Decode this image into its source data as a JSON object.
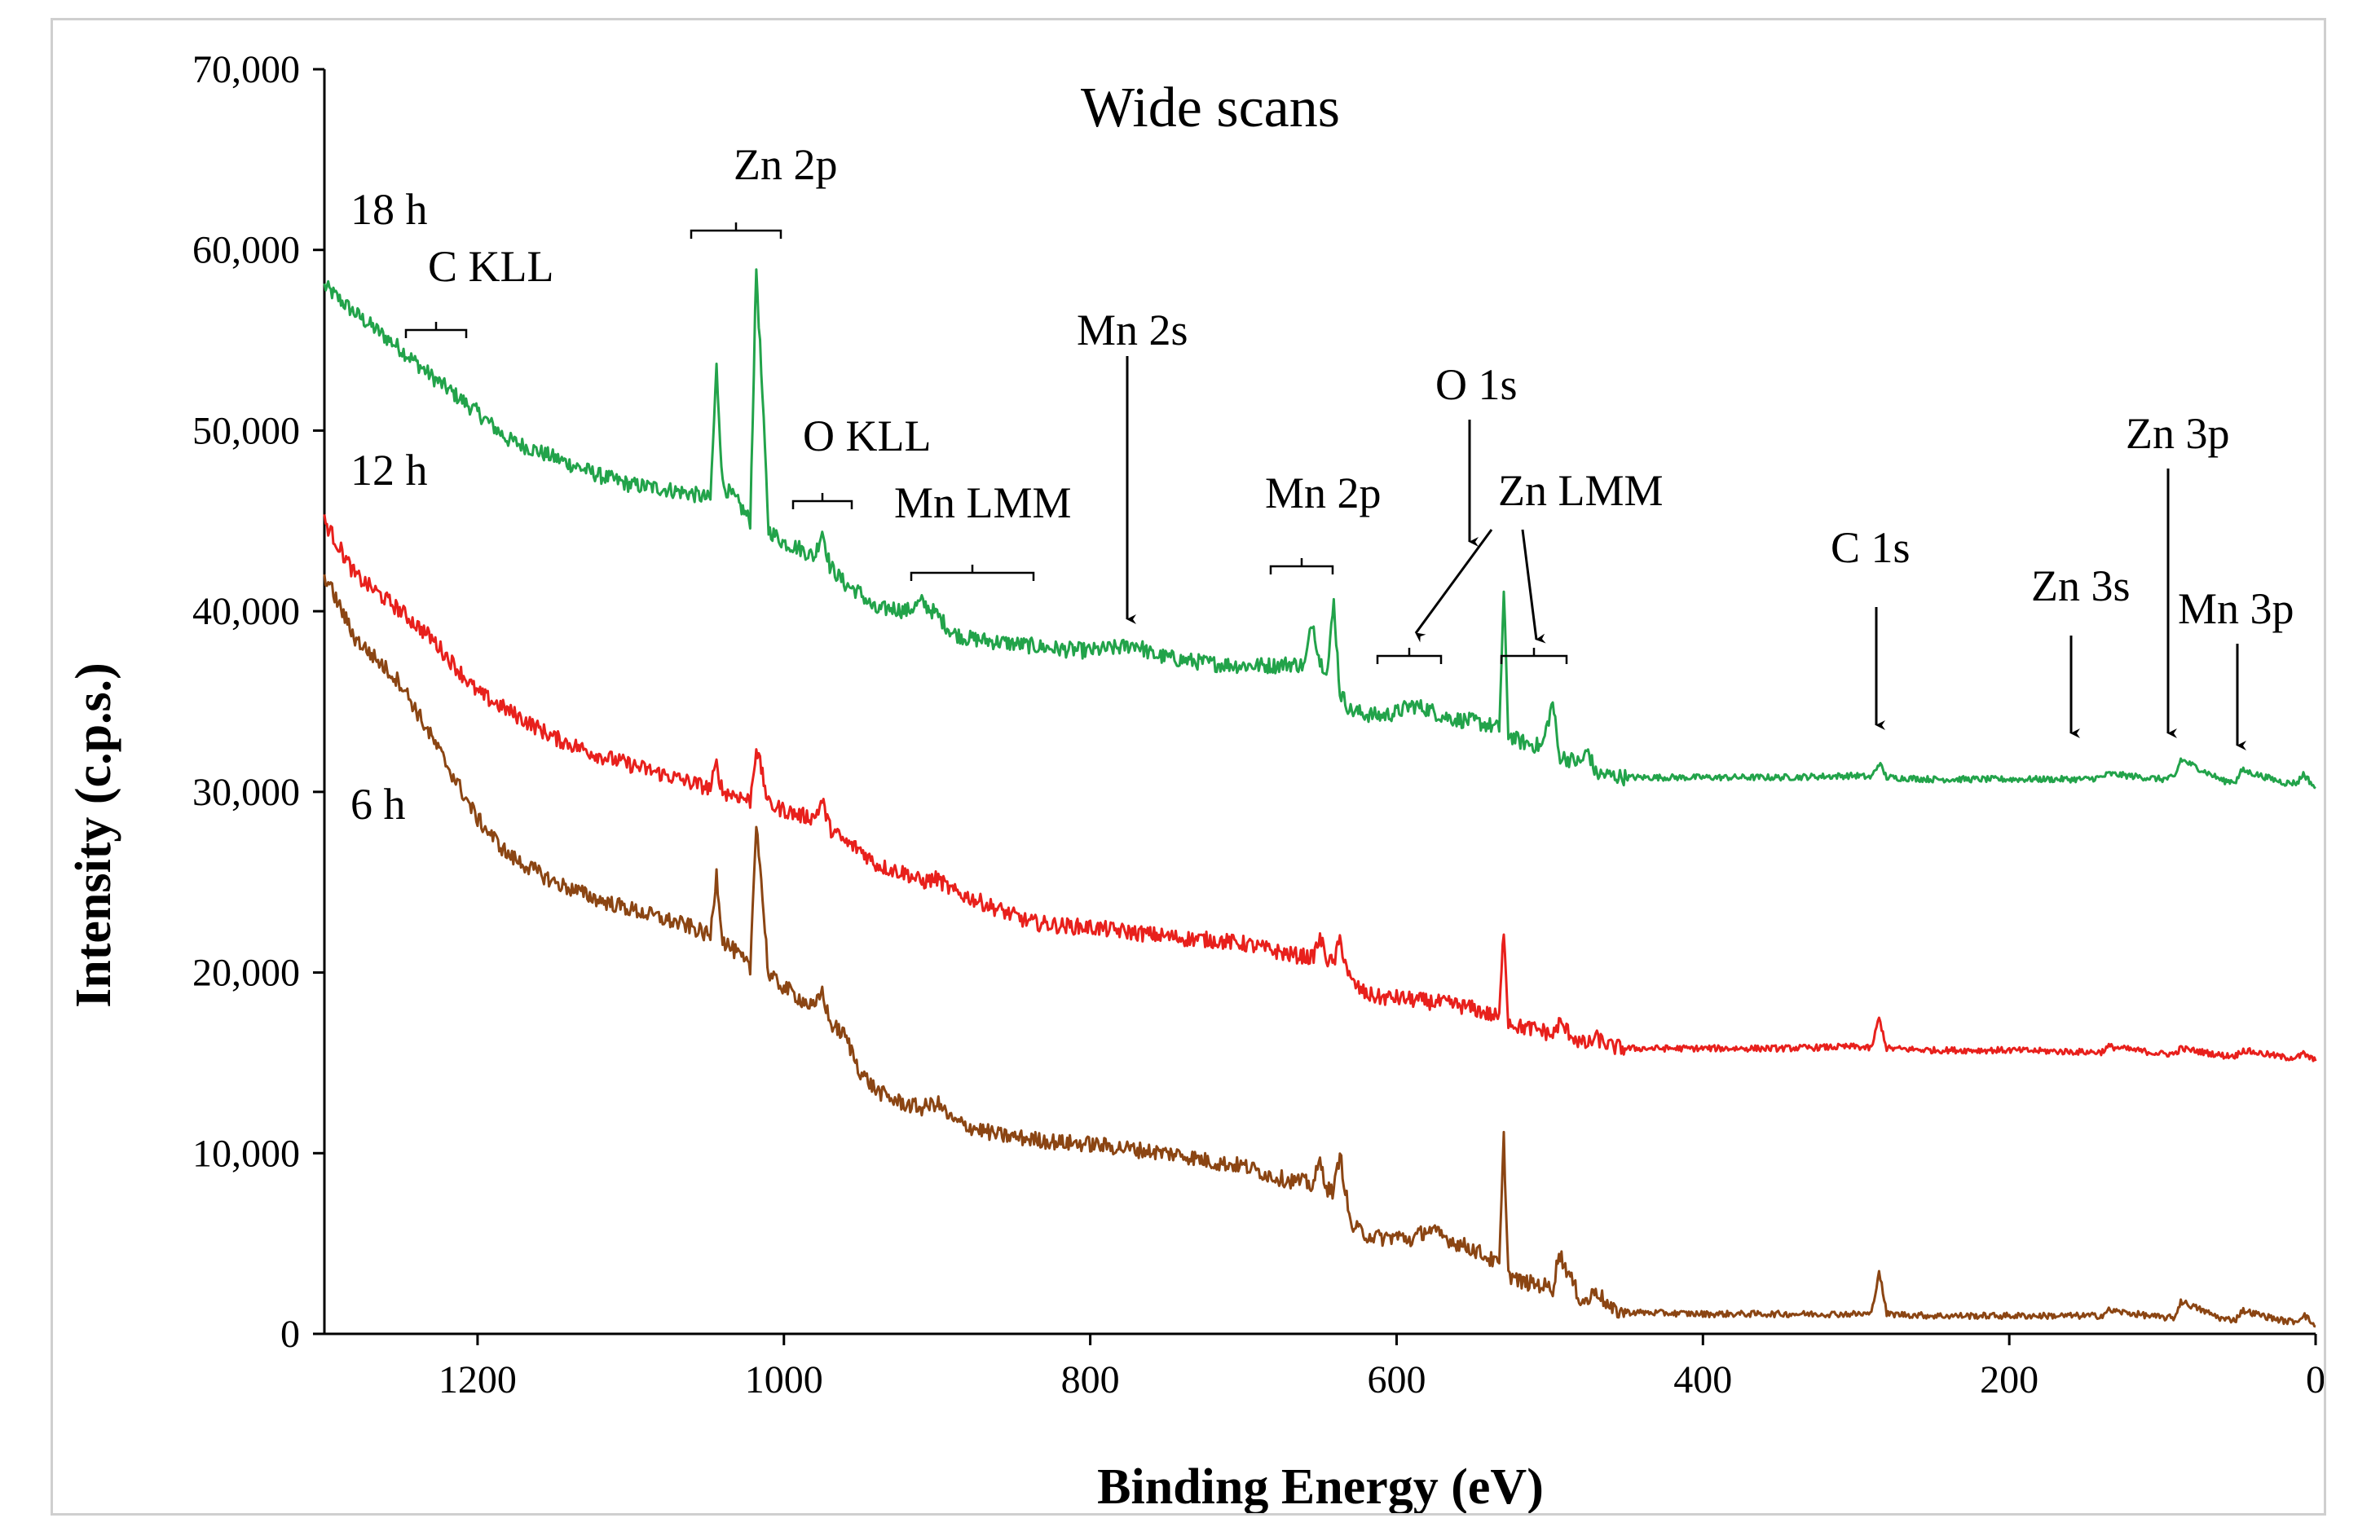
{
  "chart_data": {
    "type": "line",
    "title": "Wide scans",
    "xlabel": "Binding Energy (eV)",
    "ylabel": "Intensity (c.p.s.)",
    "xlim": [
      1300,
      0
    ],
    "ylim": [
      0,
      70000
    ],
    "x_ticks": [
      1200,
      1000,
      800,
      600,
      400,
      200,
      0
    ],
    "x_tick_labels": [
      "1200",
      "1000",
      "800",
      "600",
      "400",
      "200",
      "0"
    ],
    "y_ticks": [
      0,
      10000,
      20000,
      30000,
      40000,
      50000,
      60000,
      70000
    ],
    "y_tick_labels": [
      "0",
      "10,000",
      "20,000",
      "30,000",
      "40,000",
      "50,000",
      "60,000",
      "70,000"
    ],
    "series": [
      {
        "name": "18 h",
        "color": "#22a34a",
        "x": [
          1300,
          1280,
          1250,
          1230,
          1200,
          1180,
          1150,
          1120,
          1100,
          1080,
          1060,
          1048,
          1044,
          1040,
          1030,
          1022,
          1018,
          1010,
          1000,
          990,
          980,
          975,
          970,
          960,
          950,
          940,
          930,
          920,
          910,
          900,
          890,
          880,
          860,
          840,
          820,
          800,
          780,
          770,
          760,
          740,
          720,
          700,
          680,
          670,
          660,
          655,
          650,
          645,
          641,
          637,
          630,
          620,
          610,
          600,
          590,
          580,
          570,
          560,
          550,
          540,
          533,
          530,
          527,
          520,
          505,
          498,
          494,
          480,
          475,
          470,
          460,
          450,
          400,
          350,
          300,
          290,
          285,
          280,
          250,
          200,
          150,
          140,
          135,
          100,
          92,
          88,
          60,
          52,
          48,
          20,
          12,
          8,
          0
        ],
        "y": [
          58000,
          56500,
          54500,
          53000,
          51000,
          49500,
          48500,
          47500,
          47000,
          46800,
          46500,
          46200,
          53500,
          47000,
          46000,
          45000,
          59000,
          44500,
          43800,
          43500,
          43000,
          44500,
          42500,
          41500,
          41000,
          40000,
          40200,
          40000,
          40500,
          39800,
          38800,
          38500,
          38300,
          38100,
          37900,
          37800,
          38000,
          38200,
          37600,
          37300,
          37100,
          37000,
          37000,
          37100,
          37000,
          39500,
          37200,
          36800,
          40500,
          35500,
          34500,
          34300,
          34200,
          34400,
          34800,
          34600,
          34200,
          34000,
          33900,
          33700,
          33500,
          41000,
          33200,
          32800,
          32500,
          35000,
          32000,
          31600,
          32300,
          31000,
          30900,
          30800,
          30800,
          30800,
          30900,
          30800,
          31600,
          30800,
          30700,
          30700,
          30700,
          30800,
          31000,
          30700,
          30800,
          31800,
          30600,
          30600,
          31200,
          30500,
          30500,
          31000,
          30200
        ]
      },
      {
        "name": "12 h",
        "color": "#e8201c",
        "x": [
          1300,
          1280,
          1250,
          1230,
          1200,
          1180,
          1150,
          1120,
          1100,
          1080,
          1060,
          1048,
          1044,
          1040,
          1030,
          1022,
          1018,
          1010,
          1000,
          990,
          980,
          975,
          970,
          960,
          950,
          940,
          930,
          920,
          910,
          900,
          890,
          880,
          860,
          840,
          820,
          800,
          780,
          760,
          740,
          720,
          700,
          680,
          670,
          660,
          655,
          650,
          645,
          641,
          637,
          630,
          620,
          610,
          600,
          590,
          580,
          570,
          560,
          550,
          540,
          533,
          530,
          527,
          520,
          505,
          498,
          494,
          480,
          475,
          470,
          460,
          450,
          400,
          350,
          300,
          290,
          285,
          280,
          250,
          200,
          150,
          140,
          135,
          100,
          92,
          88,
          60,
          52,
          48,
          20,
          12,
          8,
          0
        ],
        "y": [
          45000,
          42000,
          40000,
          38500,
          35500,
          34500,
          33000,
          32000,
          31500,
          31000,
          30500,
          30200,
          31500,
          30000,
          29800,
          29500,
          32500,
          29300,
          29000,
          28700,
          28600,
          29500,
          28000,
          27200,
          26800,
          26000,
          25700,
          25500,
          25000,
          25200,
          24500,
          24200,
          23500,
          22800,
          22600,
          22500,
          22300,
          22100,
          21900,
          21800,
          21600,
          21200,
          21000,
          20900,
          20800,
          21900,
          20700,
          20500,
          21800,
          19500,
          18800,
          18600,
          18600,
          18500,
          18400,
          18300,
          18200,
          18000,
          17700,
          17500,
          22500,
          17300,
          17000,
          16800,
          16500,
          17200,
          16100,
          16000,
          16400,
          15900,
          15800,
          15800,
          15800,
          15900,
          15800,
          17500,
          15800,
          15700,
          15700,
          15600,
          15600,
          15900,
          15500,
          15500,
          15800,
          15400,
          15400,
          15700,
          15300,
          15300,
          15500,
          15100
        ]
      },
      {
        "name": "6 h",
        "color": "#8b4513",
        "x": [
          1300,
          1280,
          1250,
          1230,
          1200,
          1180,
          1150,
          1120,
          1100,
          1080,
          1060,
          1048,
          1044,
          1040,
          1030,
          1022,
          1018,
          1010,
          1000,
          990,
          980,
          975,
          970,
          960,
          950,
          940,
          930,
          920,
          910,
          900,
          890,
          880,
          860,
          840,
          820,
          800,
          780,
          760,
          740,
          720,
          700,
          680,
          670,
          660,
          655,
          650,
          645,
          641,
          637,
          630,
          620,
          610,
          600,
          590,
          580,
          570,
          560,
          550,
          540,
          533,
          530,
          527,
          520,
          505,
          498,
          494,
          480,
          475,
          470,
          460,
          450,
          400,
          350,
          300,
          290,
          285,
          280,
          250,
          200,
          150,
          140,
          135,
          100,
          92,
          88,
          60,
          52,
          48,
          20,
          12,
          8,
          0
        ],
        "y": [
          42000,
          38500,
          36000,
          33000,
          28500,
          26500,
          25000,
          24000,
          23500,
          23000,
          22500,
          22000,
          25500,
          21800,
          21000,
          20200,
          28500,
          19800,
          19200,
          18600,
          18000,
          19000,
          17200,
          16500,
          14500,
          13500,
          13000,
          12700,
          12500,
          12800,
          11800,
          11500,
          11000,
          10800,
          10600,
          10500,
          10300,
          10100,
          9900,
          9500,
          9300,
          8700,
          8500,
          8400,
          8200,
          9500,
          8000,
          7900,
          10000,
          6000,
          5500,
          5300,
          5400,
          5200,
          5800,
          5400,
          5000,
          4700,
          4200,
          3800,
          10800,
          3300,
          2900,
          2700,
          2500,
          4500,
          1900,
          1800,
          2500,
          1300,
          1200,
          1100,
          1100,
          1100,
          1100,
          3500,
          1100,
          1000,
          1000,
          1000,
          1000,
          1300,
          900,
          900,
          1800,
          800,
          800,
          1300,
          700,
          700,
          1100,
          400
        ]
      }
    ],
    "series_labels": [
      "18 h",
      "12 h",
      "6 h"
    ],
    "annotations": {
      "zn2p": "Zn 2p",
      "ckll": "C KLL",
      "mn2s": "Mn 2s",
      "okll": "O KLL",
      "mnlmm": "Mn LMM",
      "o1s": "O 1s",
      "mn2p": "Mn 2p",
      "znlmm": "Zn LMM",
      "c1s": "C 1s",
      "zn3p": "Zn 3p",
      "zn3s": "Zn 3s",
      "mn3p": "Mn 3p"
    }
  }
}
